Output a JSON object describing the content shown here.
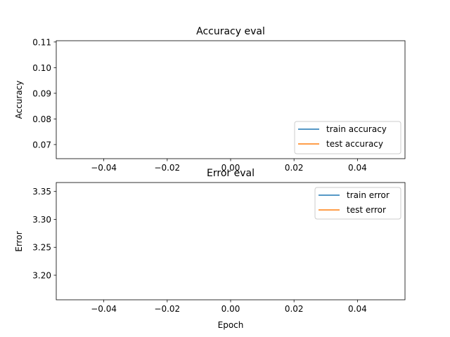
{
  "chart_data": [
    {
      "type": "line",
      "title": "Accuracy eval",
      "xlabel": "",
      "ylabel": "Accuracy",
      "xlim": [
        -0.055,
        0.055
      ],
      "ylim": [
        0.0645,
        0.1105
      ],
      "x_ticks": [
        -0.04,
        -0.02,
        0.0,
        0.02,
        0.04
      ],
      "x_tick_labels": [
        "−0.04",
        "−0.02",
        "0.00",
        "0.02",
        "0.04"
      ],
      "y_ticks": [
        0.07,
        0.08,
        0.09,
        0.1,
        0.11
      ],
      "y_tick_labels": [
        "0.07",
        "0.08",
        "0.09",
        "0.10",
        "0.11"
      ],
      "grid": false,
      "legend_position": "bottom-right",
      "series": [
        {
          "name": "train accuracy",
          "color": "#1f77b4",
          "x": [],
          "y": []
        },
        {
          "name": "test accuracy",
          "color": "#ff7f0e",
          "x": [],
          "y": []
        }
      ]
    },
    {
      "type": "line",
      "title": "Error eval",
      "xlabel": "Epoch",
      "ylabel": "Error",
      "xlim": [
        -0.055,
        0.055
      ],
      "ylim": [
        3.156,
        3.366
      ],
      "x_ticks": [
        -0.04,
        -0.02,
        0.0,
        0.02,
        0.04
      ],
      "x_tick_labels": [
        "−0.04",
        "−0.02",
        "0.00",
        "0.02",
        "0.04"
      ],
      "y_ticks": [
        3.2,
        3.25,
        3.3,
        3.35
      ],
      "y_tick_labels": [
        "3.20",
        "3.25",
        "3.30",
        "3.35"
      ],
      "grid": false,
      "legend_position": "top-right",
      "series": [
        {
          "name": "train error",
          "color": "#1f77b4",
          "x": [],
          "y": []
        },
        {
          "name": "test error",
          "color": "#ff7f0e",
          "x": [],
          "y": []
        }
      ]
    }
  ]
}
